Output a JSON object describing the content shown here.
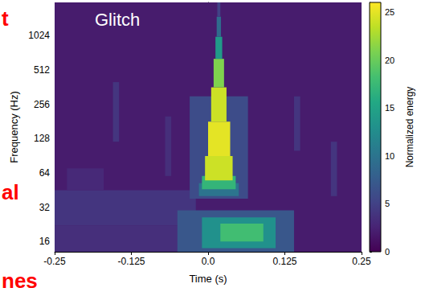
{
  "chart_data": {
    "type": "heatmap",
    "x_label": "Time (s)",
    "y_label": "Frequency (Hz)",
    "annotations": [
      "Glitch",
      "t",
      "al",
      "nes"
    ],
    "log": "y",
    "grid": false,
    "xlim": [
      -0.25,
      0.25
    ],
    "xticks": [
      -0.25,
      -0.125,
      {
        "value": 0,
        "label": "0.0"
      },
      0.125,
      0.25
    ],
    "ylim": [
      13,
      2000
    ],
    "yticks": [
      16,
      32,
      64,
      128,
      256,
      512,
      1024
    ],
    "cells": [
      [
        -0.25,
        0.25,
        13,
        2000,
        2
      ],
      [
        -0.25,
        -0.02,
        22,
        45,
        4
      ],
      [
        -0.25,
        -0.03,
        13,
        22,
        3.5
      ],
      [
        -0.23,
        -0.17,
        45,
        70,
        3
      ],
      [
        -0.155,
        -0.145,
        120,
        400,
        4
      ],
      [
        -0.07,
        -0.06,
        60,
        200,
        3.5
      ],
      [
        0.14,
        0.15,
        100,
        300,
        4
      ],
      [
        0.2,
        0.21,
        40,
        120,
        4
      ],
      [
        -0.05,
        0.14,
        13,
        30,
        7
      ],
      [
        -0.01,
        0.11,
        14,
        26,
        13
      ],
      [
        0.02,
        0.09,
        16,
        23,
        18
      ],
      [
        -0.03,
        0.065,
        38,
        300,
        6
      ],
      [
        -0.015,
        0.05,
        40,
        52,
        10
      ],
      [
        -0.01,
        0.045,
        46,
        60,
        17
      ],
      [
        -0.005,
        0.04,
        55,
        90,
        24
      ],
      [
        0.0,
        0.036,
        90,
        180,
        25
      ],
      [
        0.005,
        0.03,
        180,
        360,
        24
      ],
      [
        0.009,
        0.026,
        360,
        640,
        21
      ],
      [
        0.012,
        0.023,
        640,
        1000,
        14
      ],
      [
        0.014,
        0.021,
        1000,
        1500,
        9
      ],
      [
        0.015,
        0.02,
        1500,
        2000,
        5
      ]
    ],
    "colorbar": {
      "label": "Normalized energy",
      "lim": [
        0,
        26
      ],
      "ticks": [
        0,
        5,
        10,
        15,
        20,
        25
      ]
    }
  }
}
